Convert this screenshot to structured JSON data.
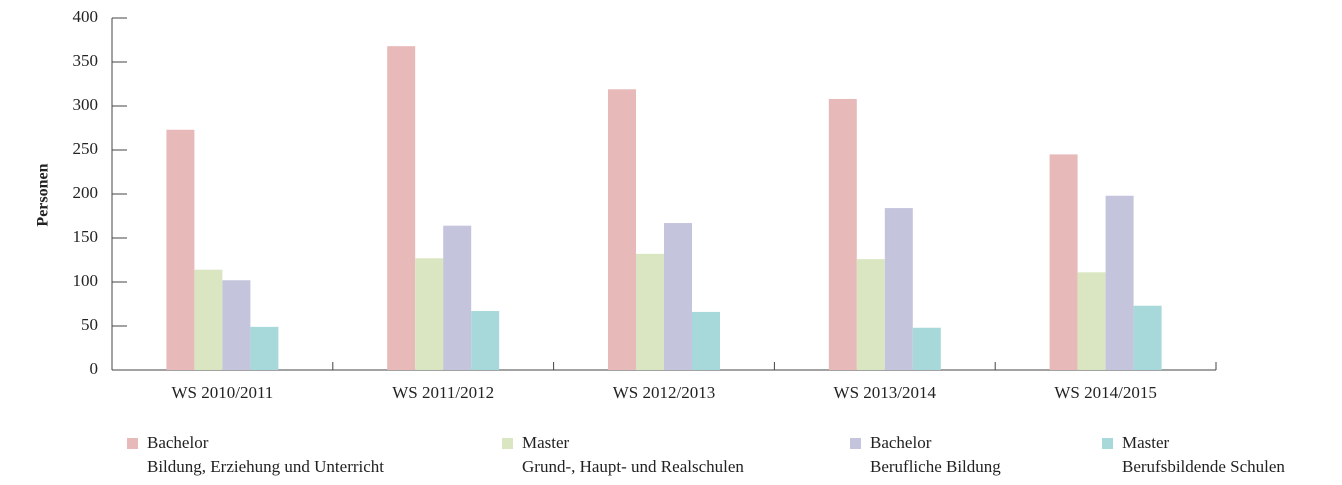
{
  "chart_data": {
    "type": "bar",
    "y_label": "Personen",
    "categories": [
      "WS 2010/2011",
      "WS 2011/2012",
      "WS 2012/2013",
      "WS 2013/2014",
      "WS 2014/2015"
    ],
    "series": [
      {
        "name": "Bachelor\nBildung, Erziehung und Unterricht",
        "color": "#e8b9b9",
        "values": [
          273,
          368,
          319,
          308,
          245
        ]
      },
      {
        "name": "Master\nGrund-, Haupt- und Realschulen",
        "color": "#dae6c1",
        "values": [
          114,
          127,
          132,
          126,
          111
        ]
      },
      {
        "name": "Bachelor\nBerufliche Bildung",
        "color": "#c4c4dd",
        "values": [
          102,
          164,
          167,
          184,
          198
        ]
      },
      {
        "name": "Master\nBerufsbildende Schulen",
        "color": "#a7d9da",
        "values": [
          49,
          67,
          66,
          48,
          73
        ]
      }
    ],
    "ylim": [
      0,
      400
    ],
    "yticks": [
      0,
      50,
      100,
      150,
      200,
      250,
      300,
      350,
      400
    ],
    "grid": false
  }
}
